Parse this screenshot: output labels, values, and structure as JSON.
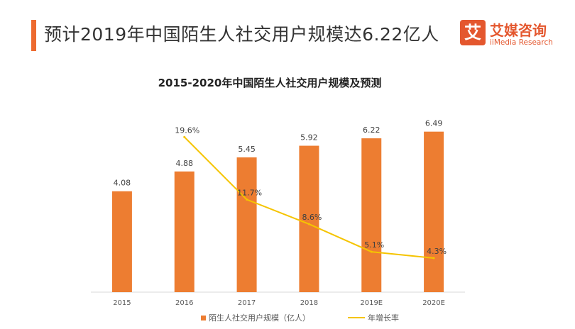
{
  "header": {
    "title": "预计2019年中国陌生人社交用户规模达6.22亿人",
    "accent_color": "#ed6a2f"
  },
  "logo": {
    "mark": "艾",
    "name": "艾媒咨询",
    "sub": "iiMedia Research",
    "color": "#e4572e"
  },
  "chart_data": {
    "type": "bar",
    "title": "2015-2020年中国陌生人社交用户规模及预测",
    "categories": [
      "2015",
      "2016",
      "2017",
      "2018",
      "2019E",
      "2020E"
    ],
    "series": [
      {
        "name": "陌生人社交用户规模（亿人）",
        "type": "bar",
        "color": "#ed7d31",
        "values": [
          4.08,
          4.88,
          5.45,
          5.92,
          6.22,
          6.49
        ],
        "labels": [
          "4.08",
          "4.88",
          "5.45",
          "5.92",
          "6.22",
          "6.49"
        ]
      },
      {
        "name": "年增长率",
        "type": "line",
        "color": "#f5c400",
        "values": [
          null,
          19.6,
          11.7,
          8.6,
          5.1,
          4.3
        ],
        "labels": [
          "",
          "19.6%",
          "11.7%",
          "8.6%",
          "5.1%",
          "4.3%"
        ]
      }
    ],
    "ylim": [
      0,
      8
    ],
    "y2lim": [
      0,
      25
    ],
    "grid": false,
    "legend": "bottom"
  }
}
